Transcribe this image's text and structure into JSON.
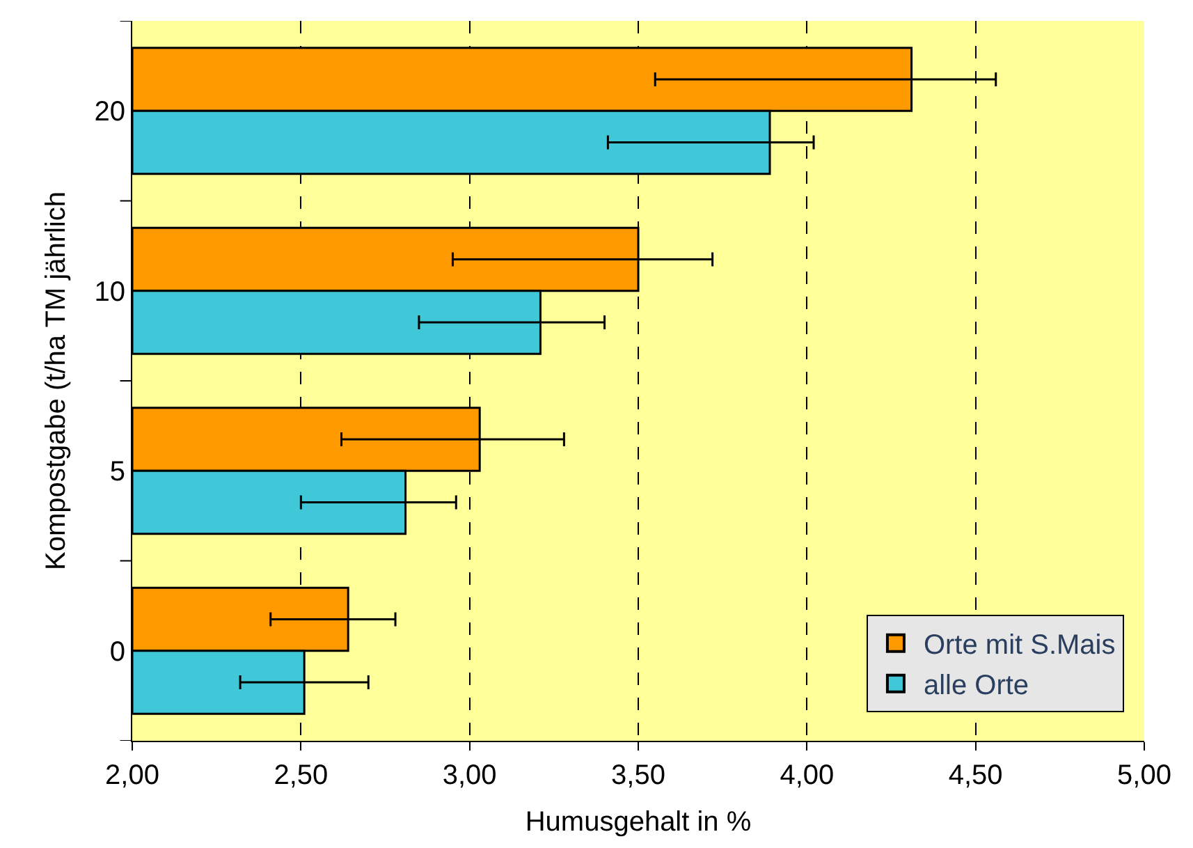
{
  "chart_data": {
    "type": "bar",
    "orientation": "horizontal",
    "xlabel": "Humusgehalt in %",
    "ylabel": "Kompostgabe (t/ha TM jährlich",
    "categories": [
      "20",
      "10",
      "5",
      "0"
    ],
    "series": [
      {
        "name": "Orte mit S.Mais",
        "color": "#ff9900",
        "values": [
          4.31,
          3.5,
          3.03,
          2.64
        ],
        "errors": [
          [
            3.55,
            4.56
          ],
          [
            2.95,
            3.72
          ],
          [
            2.62,
            3.28
          ],
          [
            2.41,
            2.78
          ]
        ]
      },
      {
        "name": "alle Orte",
        "color": "#40c8d8",
        "values": [
          3.89,
          3.21,
          2.81,
          2.51
        ],
        "errors": [
          [
            3.41,
            4.02
          ],
          [
            2.85,
            3.4
          ],
          [
            2.5,
            2.96
          ],
          [
            2.32,
            2.7
          ]
        ]
      }
    ],
    "xlim": [
      2,
      5
    ],
    "xticks": [
      {
        "value": 2,
        "label": "2,00"
      },
      {
        "value": 2.5,
        "label": "2,50"
      },
      {
        "value": 3,
        "label": "3,00"
      },
      {
        "value": 3.5,
        "label": "3,50"
      },
      {
        "value": 4,
        "label": "4,00"
      },
      {
        "value": 4.5,
        "label": "4,50"
      },
      {
        "value": 5,
        "label": "5,00"
      }
    ],
    "grid": "x",
    "legend": "bottom right"
  }
}
